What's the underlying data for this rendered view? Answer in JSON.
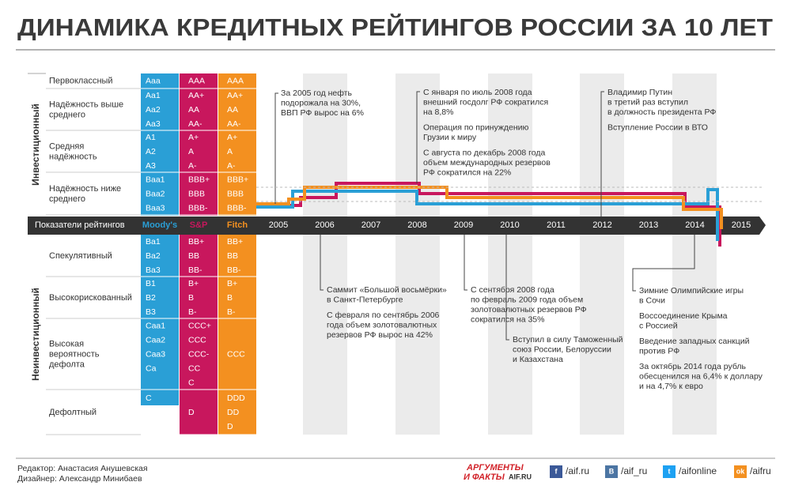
{
  "title": "ДИНАМИКА КРЕДИТНЫХ РЕЙТИНГОВ РОССИИ ЗА 10 ЛЕТ",
  "header": {
    "label": "Показатели рейтингов",
    "agencies": [
      "Moody's",
      "S&P",
      "Fitch"
    ]
  },
  "sections": [
    "Инвестиционный",
    "Неинвестиционный"
  ],
  "groups": [
    {
      "label": [
        "Первоклассный"
      ],
      "rows": [
        [
          "Aaa",
          "AAA",
          "AAA"
        ]
      ]
    },
    {
      "label": [
        "Надёжность выше",
        "среднего"
      ],
      "rows": [
        [
          "Aa1",
          "AA+",
          "AA+"
        ],
        [
          "Aa2",
          "AA",
          "AA"
        ],
        [
          "Aa3",
          "AA-",
          "AA-"
        ]
      ]
    },
    {
      "label": [
        "Средняя",
        "надёжность"
      ],
      "rows": [
        [
          "A1",
          "A+",
          "A+"
        ],
        [
          "A2",
          "A",
          "A"
        ],
        [
          "A3",
          "A-",
          "A-"
        ]
      ]
    },
    {
      "label": [
        "Надёжность ниже",
        "среднего"
      ],
      "rows": [
        [
          "Baa1",
          "BBB+",
          "BBB+"
        ],
        [
          "Baa2",
          "BBB",
          "BBB"
        ],
        [
          "Baa3",
          "BBB-",
          "BBB-"
        ]
      ]
    },
    {
      "label": [
        "Спекулятивный"
      ],
      "rows": [
        [
          "Ba1",
          "BB+",
          "BB+"
        ],
        [
          "Ba2",
          "BB",
          "BB"
        ],
        [
          "Ba3",
          "BB-",
          "BB-"
        ]
      ]
    },
    {
      "label": [
        "Высокорискованный"
      ],
      "rows": [
        [
          "B1",
          "B+",
          "B+"
        ],
        [
          "B2",
          "B",
          "B"
        ],
        [
          "B3",
          "B-",
          "B-"
        ]
      ]
    },
    {
      "label": [
        "Высокая",
        "вероятность",
        "дефолта"
      ],
      "rows": [
        [
          "Caa1",
          "CCC+",
          null
        ],
        [
          "Caa2",
          "CCC",
          null
        ],
        [
          "Caa3",
          "CCC-",
          "CCC"
        ],
        [
          "Ca",
          "CC",
          null
        ],
        [
          null,
          "C",
          null
        ]
      ]
    },
    {
      "label": [
        "Дефолтный"
      ],
      "rows": [
        [
          "C",
          null,
          "DDD"
        ],
        [
          null,
          "D",
          "DD"
        ],
        [
          null,
          null,
          "D"
        ]
      ]
    }
  ],
  "years": [
    2005,
    2006,
    2007,
    2008,
    2009,
    2010,
    2011,
    2012,
    2013,
    2014,
    2015
  ],
  "events_top": [
    {
      "blocks": [
        [
          "За 2005 год нефть",
          "подорожала на 30%,",
          "ВВП РФ вырос на 6%"
        ]
      ]
    },
    {
      "blocks": [
        [
          "С января по июль 2008 года",
          "внешний госдолг РФ сократился",
          "на 8,8%"
        ],
        [
          "Операция по принуждению",
          "Грузии к миру"
        ],
        [
          "С августа по декабрь 2008 года",
          "объем международных резервов",
          "РФ сократился на 22%"
        ]
      ]
    },
    {
      "blocks": [
        [
          "Владимир Путин",
          "в третий раз вступил",
          "в должность президента РФ"
        ],
        [
          "Вступление России в ВТО"
        ]
      ]
    }
  ],
  "events_bottom": [
    {
      "blocks": [
        [
          "Саммит «Большой восьмёрки»",
          "в Санкт-Петербурге"
        ],
        [
          "С февраля по сентябрь 2006",
          "года объем золотовалютных",
          "резервов РФ вырос на 42%"
        ]
      ]
    },
    {
      "blocks": [
        [
          "С сентября 2008 года",
          "по февраль 2009 года объем",
          "золотовалютных резервов РФ",
          "сократился на 35%"
        ]
      ]
    },
    {
      "blocks": [
        [
          "Вступил в силу Таможенный",
          "союз России, Белоруссии",
          "и Казахстана"
        ]
      ]
    },
    {
      "blocks": [
        [
          "Зимние Олимпийские игры",
          "в Сочи"
        ],
        [
          "Воссоединение Крыма",
          "с Россией"
        ],
        [
          "Введение западных санкций",
          "против РФ"
        ],
        [
          "За октябрь 2014 года рубль",
          "обесценился на 6,4% к доллару",
          "и на 4,7% к евро"
        ]
      ]
    }
  ],
  "footer": {
    "credits": [
      "Редактор: Анастасия Анушевская",
      "Дизайнер: Александр Минибаев"
    ],
    "logo": [
      "АРГУМЕНТЫ",
      "И ФАКТЫ",
      "AIF.RU"
    ],
    "social": [
      {
        "icon": "f",
        "handle": "/aif.ru"
      },
      {
        "icon": "В",
        "handle": "/aif_ru"
      },
      {
        "icon": "t",
        "handle": "/aifonline"
      },
      {
        "icon": "ok",
        "handle": "/aifru"
      }
    ]
  }
}
